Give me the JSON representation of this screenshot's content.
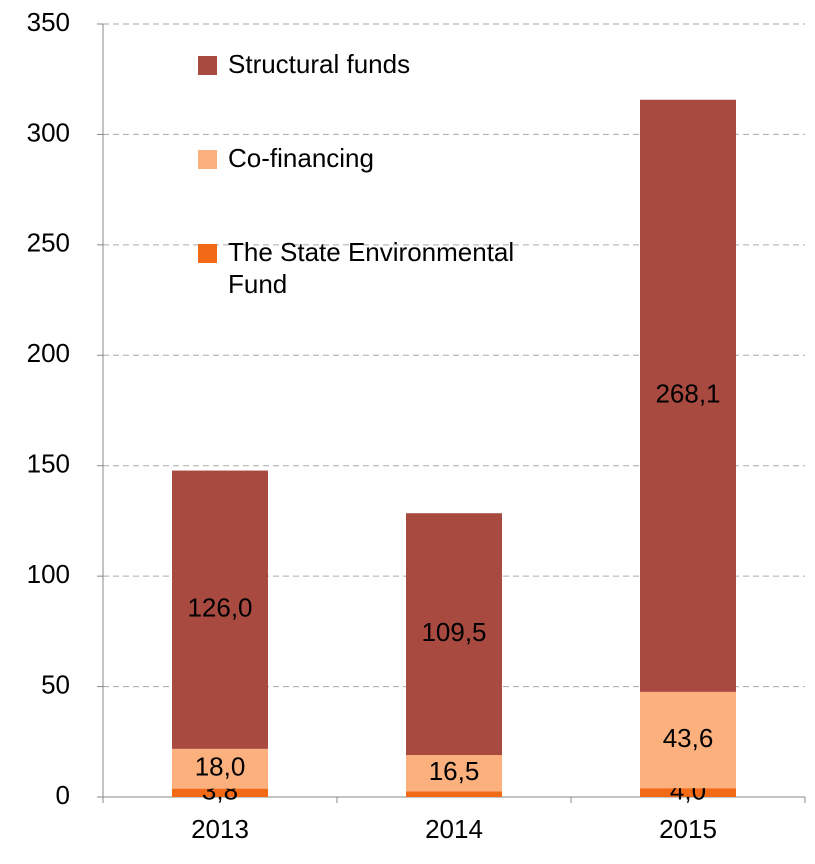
{
  "chart_data": {
    "type": "bar",
    "stacked": true,
    "categories": [
      "2013",
      "2014",
      "2015"
    ],
    "series": [
      {
        "name": "The State Environmental Fund",
        "color": "#f36a16",
        "values": [
          3.8,
          2.5,
          4.0
        ],
        "value_labels": [
          "3,8",
          null,
          "4,0"
        ]
      },
      {
        "name": "Co-financing",
        "color": "#fbb07e",
        "values": [
          18.0,
          16.5,
          43.6
        ],
        "value_labels": [
          "18,0",
          "16,5",
          "43,6"
        ]
      },
      {
        "name": "Structural funds",
        "color": "#a84a40",
        "values": [
          126.0,
          109.5,
          268.1
        ],
        "value_labels": [
          "126,0",
          "109,5",
          "268,1"
        ]
      }
    ],
    "ylim": [
      0,
      350
    ],
    "yticks": [
      0,
      50,
      100,
      150,
      200,
      250,
      300,
      350
    ],
    "grid": true,
    "legend": "upper left"
  }
}
